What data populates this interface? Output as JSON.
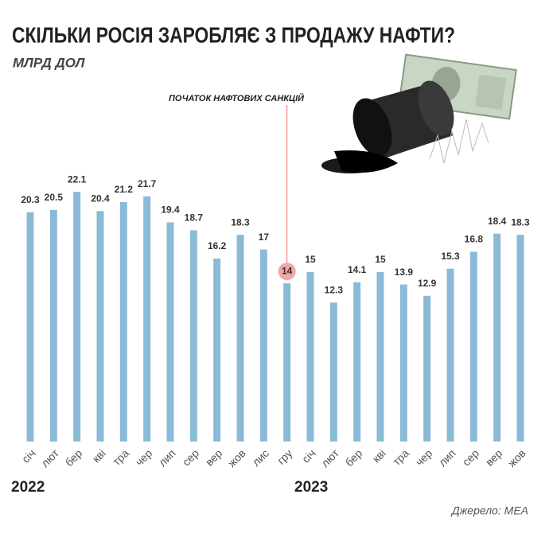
{
  "chart_data": {
    "type": "bar",
    "title": "СКІЛЬКИ РОСІЯ ЗАРОБЛЯЄ З ПРОДАЖУ НАФТИ?",
    "subtitle": "МЛРД ДОЛ",
    "annotation": "ПОЧАТОК НАФТОВИХ САНКЦІЙ",
    "source": "Джерело: МЕА",
    "years": [
      "2022",
      "2023"
    ],
    "categories": [
      "січ",
      "лют",
      "бер",
      "кві",
      "тра",
      "чер",
      "лип",
      "сер",
      "вер",
      "жов",
      "лис",
      "гру",
      "січ",
      "лют",
      "бер",
      "кві",
      "тра",
      "чер",
      "лип",
      "сер",
      "вер",
      "жов"
    ],
    "values": [
      20.3,
      20.5,
      22.1,
      20.4,
      21.2,
      21.7,
      19.4,
      18.7,
      16.2,
      18.3,
      17,
      14,
      15,
      12.3,
      14.1,
      15,
      13.9,
      12.9,
      15.3,
      16.8,
      18.4,
      18.3
    ],
    "color": "#8bbad7"
  }
}
